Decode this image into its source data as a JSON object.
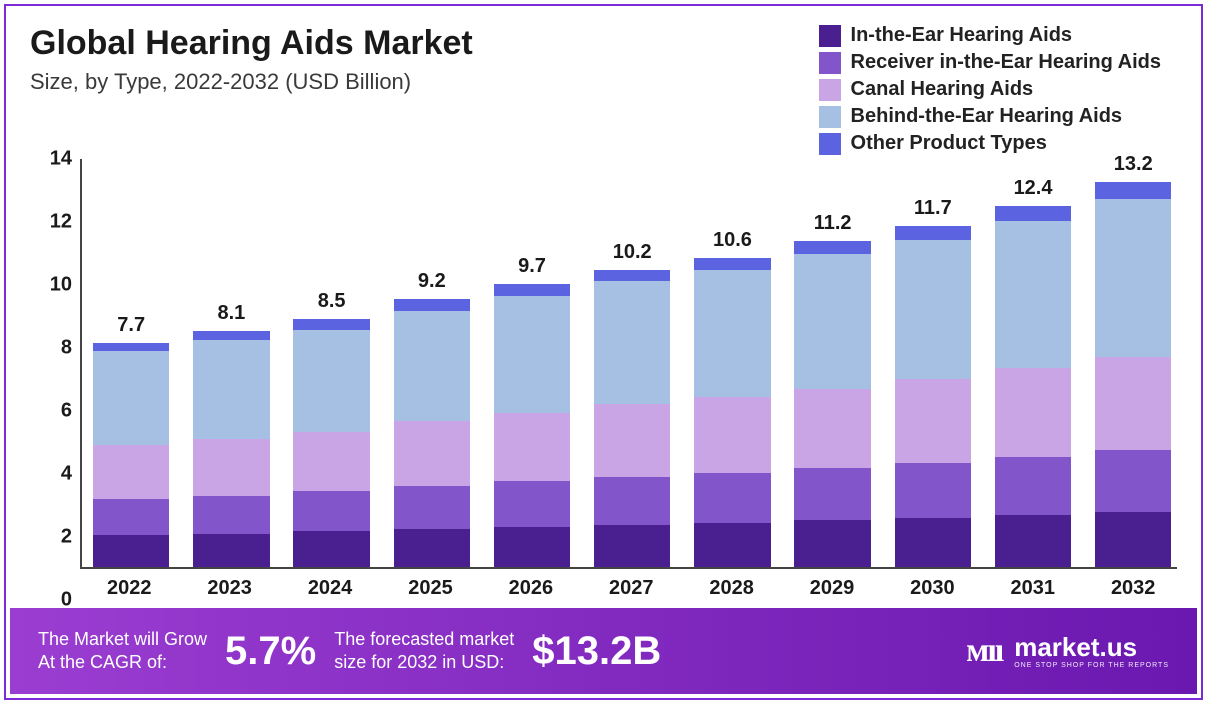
{
  "title": "Global Hearing Aids Market",
  "subtitle": "Size, by Type, 2022-2032 (USD Billion)",
  "chart": {
    "type": "stacked-bar",
    "ymax": 14,
    "ytick_step": 2,
    "yticks": [
      "0",
      "2",
      "4",
      "6",
      "8",
      "10",
      "12",
      "14"
    ],
    "background_color": "#ffffff",
    "axis_color": "#444444",
    "categories": [
      "2022",
      "2023",
      "2024",
      "2025",
      "2026",
      "2027",
      "2028",
      "2029",
      "2030",
      "2031",
      "2032"
    ],
    "totals": [
      "7.7",
      "8.1",
      "8.5",
      "9.2",
      "9.7",
      "10.2",
      "10.6",
      "11.2",
      "11.7",
      "12.4",
      "13.2"
    ],
    "series": [
      {
        "name": "In-the-Ear Hearing Aids",
        "color": "#4a1f8f",
        "values": [
          1.1,
          1.15,
          1.22,
          1.3,
          1.38,
          1.45,
          1.52,
          1.6,
          1.68,
          1.78,
          1.88
        ]
      },
      {
        "name": "Receiver in-the-Ear Hearing Aids",
        "color": "#8255cb",
        "values": [
          1.25,
          1.3,
          1.38,
          1.48,
          1.56,
          1.65,
          1.72,
          1.8,
          1.9,
          2.0,
          2.12
        ]
      },
      {
        "name": "Canal Hearing Aids",
        "color": "#caa5e5",
        "values": [
          1.85,
          1.95,
          2.05,
          2.22,
          2.36,
          2.48,
          2.58,
          2.72,
          2.88,
          3.04,
          3.22
        ]
      },
      {
        "name": "Behind-the-Ear Hearing Aids",
        "color": "#a6c0e4",
        "values": [
          3.2,
          3.38,
          3.5,
          3.8,
          4.0,
          4.22,
          4.36,
          4.62,
          4.76,
          5.04,
          5.4
        ]
      },
      {
        "name": "Other Product Types",
        "color": "#5b63e0",
        "values": [
          0.3,
          0.32,
          0.35,
          0.4,
          0.4,
          0.4,
          0.42,
          0.46,
          0.48,
          0.54,
          0.58
        ]
      }
    ],
    "title_fontsize": 34,
    "subtitle_fontsize": 22,
    "tick_fontsize": 20,
    "legend_fontsize": 20,
    "bar_label_fontsize": 20
  },
  "footer": {
    "cagr_label_l1": "The Market will Grow",
    "cagr_label_l2": "At the CAGR of:",
    "cagr_value": "5.7%",
    "forecast_label_l1": "The forecasted market",
    "forecast_label_l2": "size for 2032 in USD:",
    "forecast_value": "$13.2B",
    "brand_logo_glyph": "ᴍıı",
    "brand_name": "market.us",
    "brand_tagline": "ONE STOP SHOP FOR THE REPORTS",
    "bg_gradient_from": "#9b3dd1",
    "bg_gradient_to": "#6a18b0",
    "text_color": "#ffffff"
  },
  "frame_border_color": "#7c2bd6"
}
